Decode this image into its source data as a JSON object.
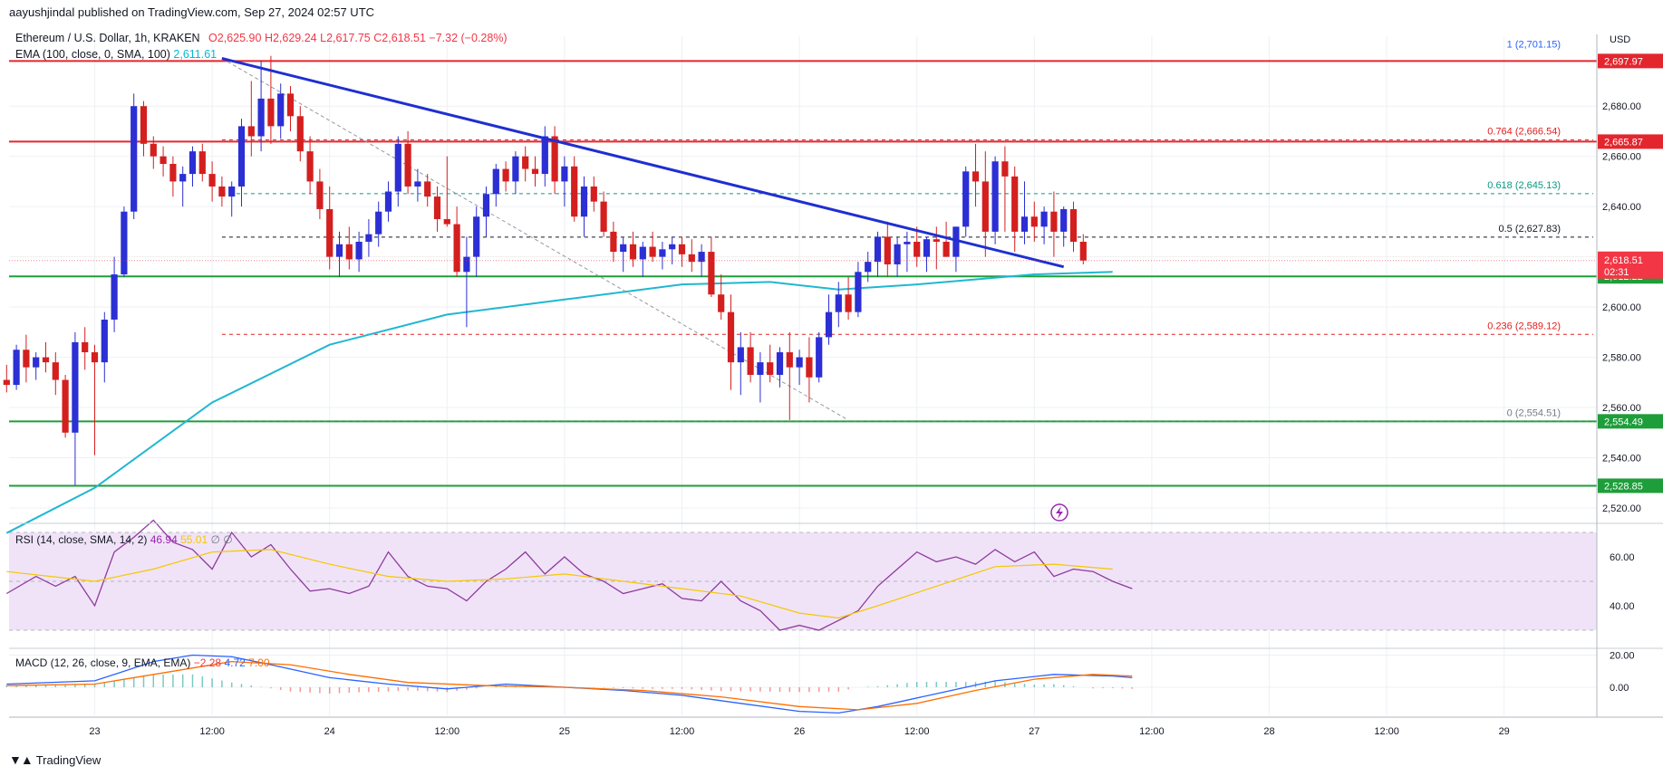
{
  "header": {
    "published": "aayushjindal published on TradingView.com, Sep 27, 2024 02:57 UTC",
    "symbol": "Ethereum / U.S. Dollar, 1h, KRAKEN",
    "o_label": "O",
    "o_val": "2,625.90",
    "h_label": "H",
    "h_val": "2,629.24",
    "l_label": "L",
    "l_val": "2,617.75",
    "c_label": "C",
    "c_val": "2,618.51",
    "change": "−7.32 (−0.28%)",
    "ema_label": "EMA (100, close, 0, SMA, 100)",
    "ema_val": "2,611.61"
  },
  "currency": "USD",
  "rsi_legend": {
    "label": "RSI (14, close, SMA, 14, 2)",
    "v1": "46.94",
    "v2": "55.01",
    "v3": "∅",
    "v4": "∅"
  },
  "macd_legend": {
    "label": "MACD (12, 26, close, 9, EMA, EMA)",
    "v1": "−2.28",
    "v2": "4.72",
    "v3": "7.00"
  },
  "brand": "TradingView",
  "icons": {
    "brand": "tradingview-logo-icon",
    "flash": "lightning-icon"
  },
  "colors": {
    "up": "#2b2fd4",
    "down": "#d41f1f",
    "ema": "#20b7d0",
    "trend": "#1f2fd0",
    "support": "#1e9e3a",
    "resistance": "#e3262e",
    "rsi": "#8e3b9c",
    "rsi_ma": "#f5c800",
    "macd": "#2962ff",
    "signal": "#ff6d00"
  },
  "chart_data": [
    {
      "type": "candlestick",
      "title": "Ethereum / U.S. Dollar, 1h, KRAKEN",
      "ylim": [
        2500,
        2710
      ],
      "y_ticks": [
        "2,520.00",
        "2,540.00",
        "2,560.00",
        "2,580.00",
        "2,600.00",
        "2,620.00",
        "2,640.00",
        "2,660.00",
        "2,680.00"
      ],
      "x_ticks": [
        "23",
        "12:00",
        "24",
        "12:00",
        "25",
        "12:00",
        "26",
        "12:00",
        "27",
        "12:00",
        "28",
        "12:00",
        "29"
      ],
      "x_tick_hours": [
        0,
        12,
        24,
        36,
        48,
        60,
        72,
        84,
        96,
        108,
        120,
        132,
        144
      ],
      "start_hour": -9,
      "last_price": {
        "value": 2618.51,
        "label": "2,618.51",
        "countdown": "02:31"
      },
      "candles": [
        [
          2571,
          2577,
          2566,
          2569
        ],
        [
          2569,
          2585,
          2567,
          2583
        ],
        [
          2583,
          2589,
          2570,
          2576
        ],
        [
          2576,
          2582,
          2571,
          2580
        ],
        [
          2580,
          2586,
          2574,
          2578
        ],
        [
          2578,
          2582,
          2565,
          2571
        ],
        [
          2571,
          2573,
          2548,
          2550
        ],
        [
          2550,
          2590,
          2529,
          2586
        ],
        [
          2586,
          2592,
          2575,
          2582
        ],
        [
          2582,
          2585,
          2541,
          2578
        ],
        [
          2578,
          2598,
          2570,
          2595
        ],
        [
          2595,
          2620,
          2590,
          2613
        ],
        [
          2613,
          2640,
          2612,
          2638
        ],
        [
          2638,
          2685,
          2635,
          2680
        ],
        [
          2680,
          2682,
          2660,
          2665
        ],
        [
          2665,
          2668,
          2655,
          2660
        ],
        [
          2660,
          2664,
          2652,
          2657
        ],
        [
          2657,
          2660,
          2644,
          2650
        ],
        [
          2650,
          2656,
          2640,
          2653
        ],
        [
          2653,
          2664,
          2648,
          2662
        ],
        [
          2662,
          2665,
          2650,
          2653
        ],
        [
          2653,
          2658,
          2642,
          2648
        ],
        [
          2648,
          2652,
          2640,
          2644
        ],
        [
          2644,
          2650,
          2636,
          2648
        ],
        [
          2648,
          2675,
          2640,
          2672
        ],
        [
          2672,
          2690,
          2660,
          2668
        ],
        [
          2668,
          2698,
          2662,
          2683
        ],
        [
          2683,
          2700,
          2665,
          2672
        ],
        [
          2672,
          2689,
          2667,
          2685
        ],
        [
          2685,
          2688,
          2670,
          2676
        ],
        [
          2676,
          2680,
          2658,
          2662
        ],
        [
          2662,
          2668,
          2645,
          2650
        ],
        [
          2650,
          2655,
          2635,
          2639
        ],
        [
          2639,
          2648,
          2615,
          2620
        ],
        [
          2620,
          2630,
          2612,
          2625
        ],
        [
          2625,
          2632,
          2615,
          2619
        ],
        [
          2619,
          2630,
          2614,
          2626
        ],
        [
          2626,
          2635,
          2620,
          2629
        ],
        [
          2629,
          2642,
          2624,
          2638
        ],
        [
          2638,
          2650,
          2634,
          2646
        ],
        [
          2646,
          2668,
          2640,
          2665
        ],
        [
          2665,
          2670,
          2645,
          2648
        ],
        [
          2648,
          2655,
          2642,
          2650
        ],
        [
          2650,
          2653,
          2640,
          2644
        ],
        [
          2644,
          2648,
          2630,
          2635
        ],
        [
          2635,
          2660,
          2632,
          2633
        ],
        [
          2633,
          2640,
          2612,
          2614
        ],
        [
          2614,
          2628,
          2592,
          2620
        ],
        [
          2620,
          2640,
          2612,
          2636
        ],
        [
          2636,
          2648,
          2628,
          2645
        ],
        [
          2645,
          2657,
          2640,
          2655
        ],
        [
          2655,
          2658,
          2646,
          2650
        ],
        [
          2650,
          2662,
          2645,
          2660
        ],
        [
          2660,
          2664,
          2650,
          2655
        ],
        [
          2655,
          2660,
          2648,
          2653
        ],
        [
          2653,
          2672,
          2648,
          2668
        ],
        [
          2668,
          2672,
          2645,
          2650
        ],
        [
          2650,
          2660,
          2640,
          2656
        ],
        [
          2656,
          2660,
          2634,
          2636
        ],
        [
          2636,
          2652,
          2628,
          2648
        ],
        [
          2648,
          2652,
          2638,
          2642
        ],
        [
          2642,
          2646,
          2628,
          2630
        ],
        [
          2630,
          2634,
          2618,
          2622
        ],
        [
          2622,
          2628,
          2614,
          2625
        ],
        [
          2625,
          2630,
          2616,
          2619
        ],
        [
          2619,
          2626,
          2612,
          2624
        ],
        [
          2624,
          2630,
          2618,
          2620
        ],
        [
          2620,
          2626,
          2615,
          2623
        ],
        [
          2623,
          2628,
          2617,
          2625
        ],
        [
          2625,
          2628,
          2616,
          2621
        ],
        [
          2621,
          2627,
          2614,
          2618
        ],
        [
          2618,
          2625,
          2612,
          2622
        ],
        [
          2622,
          2628,
          2604,
          2605
        ],
        [
          2605,
          2613,
          2595,
          2598
        ],
        [
          2598,
          2605,
          2567,
          2578
        ],
        [
          2578,
          2590,
          2565,
          2584
        ],
        [
          2584,
          2590,
          2570,
          2573
        ],
        [
          2573,
          2582,
          2562,
          2578
        ],
        [
          2578,
          2585,
          2570,
          2573
        ],
        [
          2573,
          2584,
          2568,
          2582
        ],
        [
          2582,
          2590,
          2555,
          2576
        ],
        [
          2576,
          2583,
          2569,
          2580
        ],
        [
          2580,
          2588,
          2562,
          2572
        ],
        [
          2572,
          2590,
          2570,
          2588
        ],
        [
          2588,
          2605,
          2585,
          2598
        ],
        [
          2598,
          2610,
          2592,
          2605
        ],
        [
          2605,
          2612,
          2595,
          2598
        ],
        [
          2598,
          2618,
          2596,
          2614
        ],
        [
          2614,
          2622,
          2610,
          2618
        ],
        [
          2618,
          2630,
          2612,
          2628
        ],
        [
          2628,
          2634,
          2612,
          2617
        ],
        [
          2617,
          2628,
          2612,
          2625
        ],
        [
          2625,
          2630,
          2614,
          2626
        ],
        [
          2626,
          2632,
          2616,
          2620
        ],
        [
          2620,
          2628,
          2614,
          2627
        ],
        [
          2627,
          2632,
          2615,
          2626
        ],
        [
          2626,
          2634,
          2620,
          2620
        ],
        [
          2620,
          2632,
          2614,
          2632
        ],
        [
          2632,
          2656,
          2628,
          2654
        ],
        [
          2654,
          2665,
          2640,
          2650
        ],
        [
          2650,
          2662,
          2620,
          2630
        ],
        [
          2630,
          2660,
          2625,
          2658
        ],
        [
          2658,
          2664,
          2630,
          2652
        ],
        [
          2652,
          2656,
          2622,
          2630
        ],
        [
          2630,
          2650,
          2625,
          2636
        ],
        [
          2636,
          2642,
          2626,
          2632
        ],
        [
          2632,
          2640,
          2625,
          2638
        ],
        [
          2638,
          2646,
          2620,
          2630
        ],
        [
          2630,
          2640,
          2624,
          2639
        ],
        [
          2639,
          2642,
          2622,
          2626
        ],
        [
          2626,
          2629,
          2617,
          2618.51
        ]
      ],
      "ema100_points": [
        [
          -9,
          2510
        ],
        [
          0,
          2528
        ],
        [
          12,
          2562
        ],
        [
          24,
          2585
        ],
        [
          36,
          2597
        ],
        [
          48,
          2603
        ],
        [
          60,
          2609
        ],
        [
          69,
          2610
        ],
        [
          76,
          2607
        ],
        [
          84,
          2609
        ],
        [
          96,
          2613
        ],
        [
          104,
          2614
        ]
      ],
      "horizontal_lines": [
        {
          "kind": "resistance",
          "value": 2697.97,
          "label": "2,697.97"
        },
        {
          "kind": "resistance",
          "value": 2665.87,
          "label": "2,665.87"
        },
        {
          "kind": "support",
          "value": 2612.22,
          "label": "2,612.22"
        },
        {
          "kind": "support",
          "value": 2554.49,
          "label": "2,554.49"
        },
        {
          "kind": "support",
          "value": 2528.85,
          "label": "2,528.85"
        }
      ],
      "trendline": {
        "from": [
          13,
          2699
        ],
        "to": [
          99,
          2616
        ]
      },
      "fib_diagonal": {
        "from": [
          13,
          2699
        ],
        "to": [
          77,
          2555
        ]
      },
      "fibonacci": [
        {
          "level": "1",
          "value": 2701.15,
          "label": "1 (2,701.15)",
          "color": "#2962ff"
        },
        {
          "level": "0.764",
          "value": 2666.54,
          "label": "0.764 (2,666.54)",
          "color": "#e02020"
        },
        {
          "level": "0.618",
          "value": 2645.13,
          "label": "0.618 (2,645.13)",
          "color": "#089981"
        },
        {
          "level": "0.5",
          "value": 2627.83,
          "label": "0.5 (2,627.83)",
          "color": "#131722"
        },
        {
          "level": "0.236",
          "value": 2589.12,
          "label": "0.236 (2,589.12)",
          "color": "#e02020"
        },
        {
          "level": "0",
          "value": 2554.51,
          "label": "0 (2,554.51)",
          "color": "#787b86"
        }
      ]
    },
    {
      "type": "line",
      "title": "RSI (14, close, SMA, 14, 2)",
      "ylim": [
        20,
        80
      ],
      "y_ticks": [
        "40.00",
        "60.00"
      ],
      "band": [
        30,
        70
      ],
      "rsi_points": [
        [
          -9,
          45
        ],
        [
          -6,
          52
        ],
        [
          -4,
          48
        ],
        [
          -2,
          52
        ],
        [
          0,
          40
        ],
        [
          2,
          62
        ],
        [
          4,
          68
        ],
        [
          6,
          75
        ],
        [
          8,
          66
        ],
        [
          10,
          63
        ],
        [
          12,
          55
        ],
        [
          14,
          70
        ],
        [
          16,
          60
        ],
        [
          18,
          65
        ],
        [
          20,
          55
        ],
        [
          22,
          46
        ],
        [
          24,
          47
        ],
        [
          26,
          45
        ],
        [
          28,
          48
        ],
        [
          30,
          62
        ],
        [
          32,
          52
        ],
        [
          34,
          48
        ],
        [
          36,
          47
        ],
        [
          38,
          42
        ],
        [
          40,
          50
        ],
        [
          42,
          55
        ],
        [
          44,
          62
        ],
        [
          46,
          53
        ],
        [
          48,
          60
        ],
        [
          50,
          53
        ],
        [
          52,
          50
        ],
        [
          54,
          45
        ],
        [
          56,
          47
        ],
        [
          58,
          49
        ],
        [
          60,
          43
        ],
        [
          62,
          42
        ],
        [
          64,
          50
        ],
        [
          66,
          42
        ],
        [
          68,
          38
        ],
        [
          70,
          30
        ],
        [
          72,
          32
        ],
        [
          74,
          30
        ],
        [
          76,
          34
        ],
        [
          78,
          38
        ],
        [
          80,
          48
        ],
        [
          82,
          55
        ],
        [
          84,
          62
        ],
        [
          86,
          58
        ],
        [
          88,
          60
        ],
        [
          90,
          57
        ],
        [
          92,
          63
        ],
        [
          94,
          58
        ],
        [
          96,
          62
        ],
        [
          98,
          52
        ],
        [
          100,
          55
        ],
        [
          102,
          54
        ],
        [
          104,
          50
        ],
        [
          106,
          47
        ]
      ],
      "rsi_ma_points": [
        [
          -9,
          54
        ],
        [
          0,
          50
        ],
        [
          6,
          55
        ],
        [
          12,
          62
        ],
        [
          18,
          63
        ],
        [
          24,
          57
        ],
        [
          30,
          52
        ],
        [
          36,
          50
        ],
        [
          42,
          51
        ],
        [
          48,
          53
        ],
        [
          54,
          50
        ],
        [
          60,
          47
        ],
        [
          66,
          44
        ],
        [
          72,
          37
        ],
        [
          76,
          35
        ],
        [
          80,
          40
        ],
        [
          86,
          48
        ],
        [
          92,
          56
        ],
        [
          98,
          57
        ],
        [
          104,
          55
        ]
      ]
    },
    {
      "type": "line",
      "title": "MACD (12, 26, close, 9, EMA, EMA)",
      "ylim": [
        -20,
        25
      ],
      "y_ticks": [
        "0.00",
        "20.00"
      ],
      "macd_points": [
        [
          -9,
          2
        ],
        [
          0,
          4
        ],
        [
          6,
          16
        ],
        [
          10,
          20
        ],
        [
          14,
          19
        ],
        [
          18,
          14
        ],
        [
          24,
          6
        ],
        [
          30,
          2
        ],
        [
          36,
          -1
        ],
        [
          42,
          2
        ],
        [
          48,
          0
        ],
        [
          54,
          -2
        ],
        [
          60,
          -5
        ],
        [
          66,
          -10
        ],
        [
          72,
          -15
        ],
        [
          76,
          -16
        ],
        [
          80,
          -12
        ],
        [
          86,
          -4
        ],
        [
          92,
          4
        ],
        [
          98,
          8
        ],
        [
          104,
          7
        ],
        [
          106,
          6
        ]
      ],
      "signal_points": [
        [
          -9,
          1
        ],
        [
          0,
          2
        ],
        [
          8,
          10
        ],
        [
          14,
          16
        ],
        [
          20,
          14
        ],
        [
          26,
          8
        ],
        [
          32,
          3
        ],
        [
          40,
          1
        ],
        [
          48,
          0
        ],
        [
          56,
          -2
        ],
        [
          64,
          -6
        ],
        [
          72,
          -12
        ],
        [
          78,
          -14
        ],
        [
          84,
          -10
        ],
        [
          90,
          -2
        ],
        [
          96,
          5
        ],
        [
          102,
          8
        ],
        [
          106,
          7
        ]
      ]
    }
  ]
}
